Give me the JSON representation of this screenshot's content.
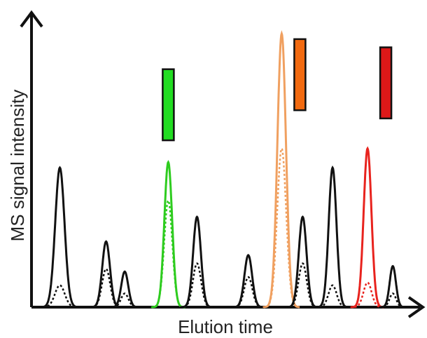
{
  "chart_data": {
    "type": "line",
    "title": "",
    "xlabel": "Elution time",
    "ylabel": "MS signal intensity",
    "xlim": [
      0,
      100
    ],
    "ylim": [
      0,
      100
    ],
    "grid": false,
    "legend": "none",
    "peaks": [
      {
        "center": 7.3,
        "height": 51,
        "width": 1.2,
        "dotted_height": 8,
        "color": "#111111"
      },
      {
        "center": 19.2,
        "height": 24,
        "width": 1.0,
        "dotted_height": 14,
        "color": "#111111"
      },
      {
        "center": 24.0,
        "height": 13,
        "width": 0.9,
        "dotted_height": 5,
        "color": "#111111"
      },
      {
        "center": 35.2,
        "height": 53,
        "width": 1.0,
        "dotted_height": 39,
        "color": "#2ecc1f"
      },
      {
        "center": 42.6,
        "height": 33,
        "width": 1.0,
        "dotted_height": 16,
        "color": "#111111"
      },
      {
        "center": 55.8,
        "height": 19,
        "width": 1.0,
        "dotted_height": 11,
        "color": "#111111"
      },
      {
        "center": 64.4,
        "height": 100,
        "width": 1.1,
        "dotted_height": 58,
        "color": "#f0a060"
      },
      {
        "center": 69.8,
        "height": 33,
        "width": 1.0,
        "dotted_height": 16,
        "color": "#111111"
      },
      {
        "center": 77.5,
        "height": 51,
        "width": 1.0,
        "dotted_height": 8,
        "color": "#111111"
      },
      {
        "center": 86.5,
        "height": 58,
        "width": 1.0,
        "dotted_height": 9,
        "color": "#e8231e"
      },
      {
        "center": 93.0,
        "height": 15,
        "width": 0.8,
        "dotted_height": 5,
        "color": "#111111"
      }
    ],
    "markers": [
      {
        "peak_index": 3,
        "color": "#22dd22",
        "top": 87,
        "bottom": 61
      },
      {
        "peak_index": 6,
        "color": "#f26a10",
        "top": 98,
        "bottom": 72
      },
      {
        "peak_index": 9,
        "color": "#dd1818",
        "top": 95,
        "bottom": 69
      }
    ]
  }
}
